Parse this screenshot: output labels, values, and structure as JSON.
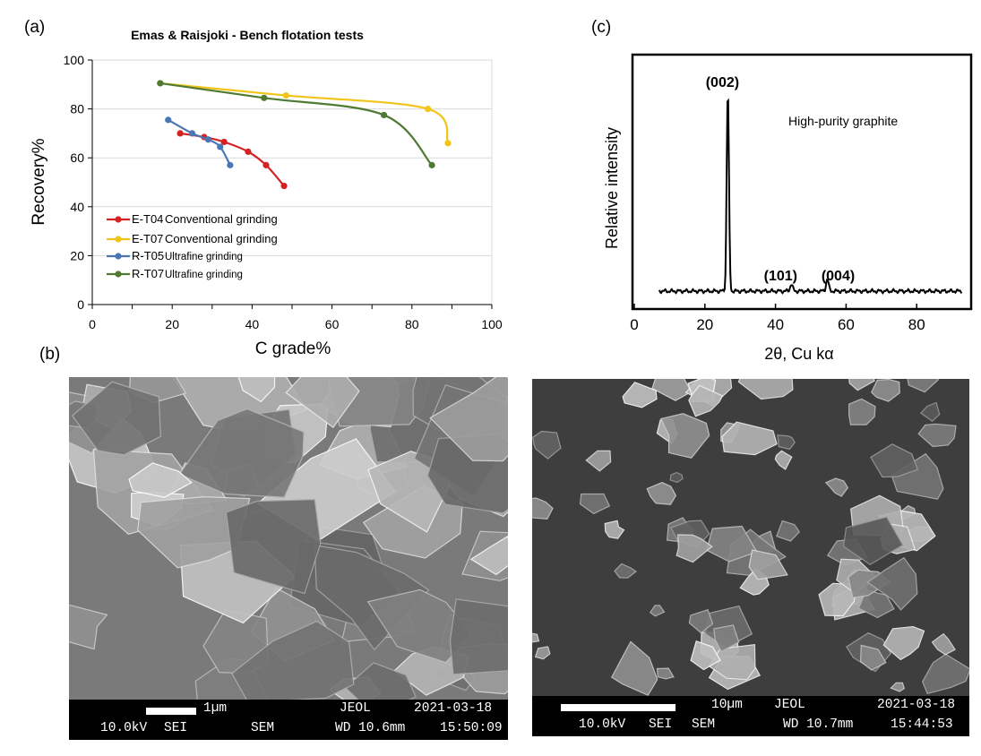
{
  "panels": {
    "a": "(a)",
    "b": "(b)",
    "c": "(c)"
  },
  "chart_data": [
    {
      "type": "line",
      "title": "Emas & Raisjoki - Bench flotation tests",
      "xlabel": "C grade%",
      "ylabel": "Recovery%",
      "xlim": [
        0,
        100
      ],
      "ylim": [
        0,
        100
      ],
      "xticks": [
        "0",
        "20",
        "40",
        "60",
        "80",
        "100"
      ],
      "yticks": [
        "0",
        "20",
        "40",
        "60",
        "80",
        "100"
      ],
      "grid": true,
      "legend_position": "bottom-left",
      "series": [
        {
          "name": "E-T04",
          "method": "Conventional grinding",
          "color": "#d42121",
          "x": [
            22,
            28,
            33,
            39,
            43.5,
            48
          ],
          "y": [
            70,
            68.5,
            66.5,
            62.5,
            57,
            48.5
          ]
        },
        {
          "name": "E-T07",
          "method": "Conventional grinding",
          "color": "#f2c418",
          "x": [
            17,
            48.5,
            84,
            89
          ],
          "y": [
            90.5,
            85.5,
            80,
            66
          ]
        },
        {
          "name": "R-T05",
          "method": "Ultrafine grinding",
          "color": "#4a76b5",
          "x": [
            19,
            25,
            29,
            32,
            34.5
          ],
          "y": [
            75.5,
            70,
            67.5,
            64.5,
            57
          ]
        },
        {
          "name": "R-T07",
          "method": "Ultrafine grinding",
          "color": "#4f7a32",
          "x": [
            17,
            43,
            73,
            85
          ],
          "y": [
            90.5,
            84.5,
            77.5,
            57
          ]
        }
      ]
    },
    {
      "type": "line",
      "title": "",
      "xlabel": "2θ, Cu kα",
      "ylabel": "Relative intensity",
      "xlim": [
        0,
        95
      ],
      "xticks": [
        "0",
        "20",
        "40",
        "60",
        "80"
      ],
      "annotation": "High-purity graphite",
      "peaks": [
        {
          "label": "(002)",
          "x": 26.5,
          "intensity": 1.0
        },
        {
          "label": "(101)",
          "x": 44.5,
          "intensity": 0.035
        },
        {
          "label": "(004)",
          "x": 54.7,
          "intensity": 0.06
        }
      ]
    }
  ],
  "sem_images": [
    {
      "scale": "1µm",
      "maker": "JEOL",
      "date": "2021-03-18",
      "voltage": "10.0kV",
      "mode": "SEI",
      "type": "SEM",
      "wd": "WD 10.6mm",
      "time": "15:50:09"
    },
    {
      "scale": "10µm",
      "maker": "JEOL",
      "date": "2021-03-18",
      "voltage": "10.0kV",
      "mode": "SEI",
      "type": "SEM",
      "wd": "WD 10.7mm",
      "time": "15:44:53"
    }
  ]
}
